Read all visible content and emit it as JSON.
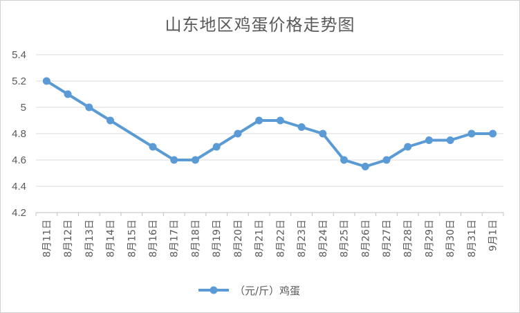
{
  "chart_data": {
    "type": "line",
    "title": "山东地区鸡蛋价格走势图",
    "categories": [
      "8月11日",
      "8月12日",
      "8月13日",
      "8月14日",
      "8月15日",
      "8月16日",
      "8月17日",
      "8月18日",
      "8月19日",
      "8月20日",
      "8月21日",
      "8月22日",
      "8月23日",
      "8月24日",
      "8月25日",
      "8月26日",
      "8月27日",
      "8月28日",
      "8月29日",
      "8月30日",
      "8月31日",
      "9月1日"
    ],
    "series": [
      {
        "name": "（元/斤）鸡蛋",
        "color": "#5b9bd5",
        "values": [
          5.2,
          5.1,
          5.0,
          4.9,
          null,
          4.7,
          4.6,
          4.6,
          4.7,
          4.8,
          4.9,
          4.9,
          4.85,
          4.8,
          4.6,
          4.55,
          4.6,
          4.7,
          4.75,
          4.75,
          4.8,
          4.8
        ]
      }
    ],
    "ylim": [
      4.2,
      5.4
    ],
    "yticks": [
      "4.2",
      "4.4",
      "4.6",
      "4.8",
      "5",
      "5.2",
      "5.4"
    ],
    "grid": true,
    "legend_position": "bottom"
  }
}
